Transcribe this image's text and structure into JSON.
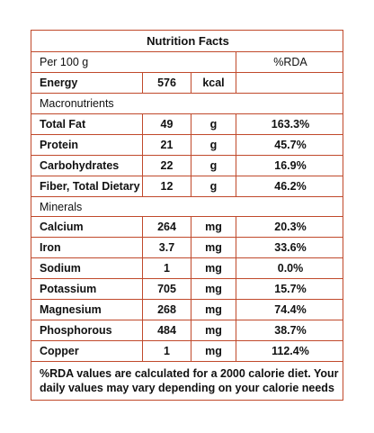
{
  "title": "Nutrition Facts",
  "per_label": "Per 100 g",
  "rda_header": "%RDA",
  "energy": {
    "label": "Energy",
    "value": "576",
    "unit": "kcal",
    "rda": ""
  },
  "macro_header": "Macronutrients",
  "macros": [
    {
      "label": "Total Fat",
      "value": "49",
      "unit": "g",
      "rda": "163.3%"
    },
    {
      "label": "Protein",
      "value": "21",
      "unit": "g",
      "rda": "45.7%"
    },
    {
      "label": "Carbohydrates",
      "value": "22",
      "unit": "g",
      "rda": "16.9%"
    },
    {
      "label": "Fiber, Total Dietary",
      "value": "12",
      "unit": "g",
      "rda": "46.2%"
    }
  ],
  "minerals_header": "Minerals",
  "minerals": [
    {
      "label": "Calcium",
      "value": "264",
      "unit": "mg",
      "rda": "20.3%"
    },
    {
      "label": "Iron",
      "value": "3.7",
      "unit": "mg",
      "rda": "33.6%"
    },
    {
      "label": "Sodium",
      "value": "1",
      "unit": "mg",
      "rda": "0.0%"
    },
    {
      "label": "Potassium",
      "value": "705",
      "unit": "mg",
      "rda": "15.7%"
    },
    {
      "label": "Magnesium",
      "value": "268",
      "unit": "mg",
      "rda": "74.4%"
    },
    {
      "label": "Phosphorous",
      "value": "484",
      "unit": "mg",
      "rda": "38.7%"
    },
    {
      "label": "Copper",
      "value": "1",
      "unit": "mg",
      "rda": "112.4%"
    }
  ],
  "footnote_line1": "%RDA values are calculated for a 2000 calorie diet. Your",
  "footnote_line2": "daily values may vary depending on your calorie needs",
  "border_color": "#c0492b"
}
